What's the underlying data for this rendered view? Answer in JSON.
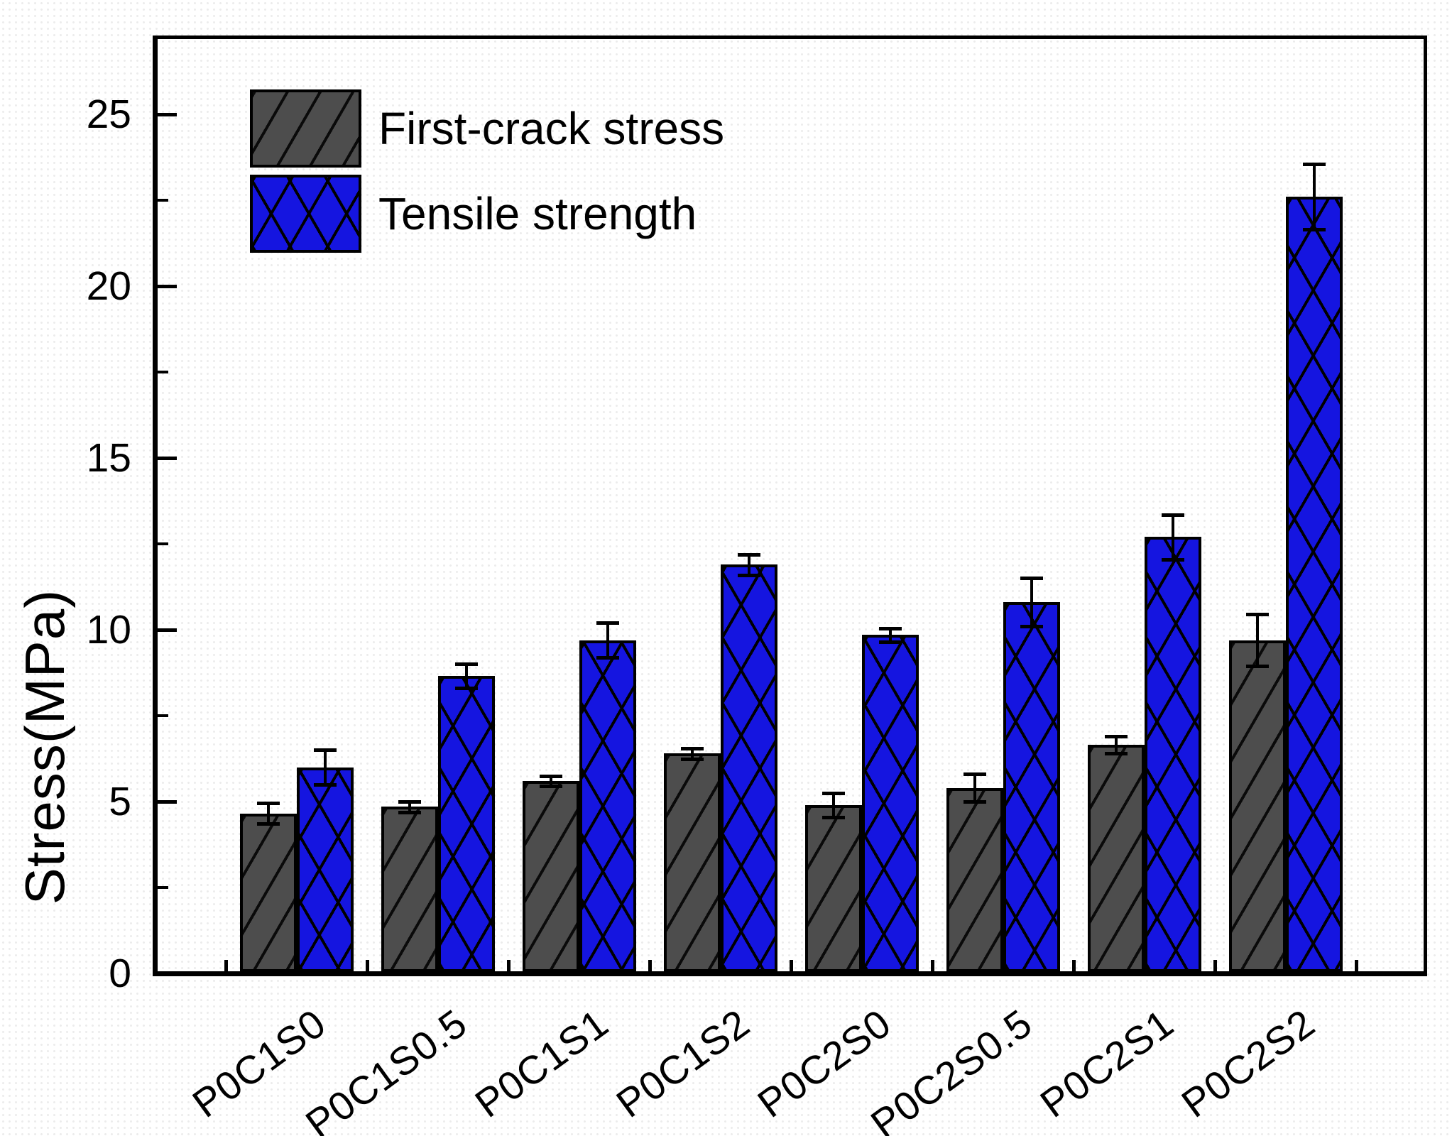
{
  "chart_data": {
    "type": "bar",
    "title": "",
    "xlabel": "",
    "ylabel": "Stress(MPa)",
    "ylim": [
      0,
      27.2
    ],
    "yticks": [
      0,
      5,
      10,
      15,
      20,
      25
    ],
    "y_minor_ticks": [
      2.5,
      7.5,
      12.5,
      17.5,
      22.5
    ],
    "grid": false,
    "legend_position": "top-left-inside",
    "categories": [
      "P0C1S0",
      "P0C1S0.5",
      "P0C1S1",
      "P0C1S2",
      "P0C2S0",
      "P0C2S0.5",
      "P0C2S1",
      "P0C2S2"
    ],
    "series": [
      {
        "name": "First-crack stress",
        "color": "#4d4d4d",
        "hatch": "diagonal",
        "values": [
          4.65,
          4.85,
          5.6,
          6.4,
          4.9,
          5.4,
          6.65,
          9.7
        ],
        "errors": [
          0.3,
          0.15,
          0.15,
          0.15,
          0.35,
          0.4,
          0.25,
          0.75
        ]
      },
      {
        "name": "Tensile strength",
        "color": "#1515e0",
        "hatch": "cross-diagonal",
        "values": [
          6.0,
          8.65,
          9.7,
          11.9,
          9.85,
          10.8,
          12.7,
          22.6
        ],
        "errors": [
          0.5,
          0.35,
          0.5,
          0.3,
          0.2,
          0.7,
          0.65,
          0.95
        ]
      }
    ]
  }
}
